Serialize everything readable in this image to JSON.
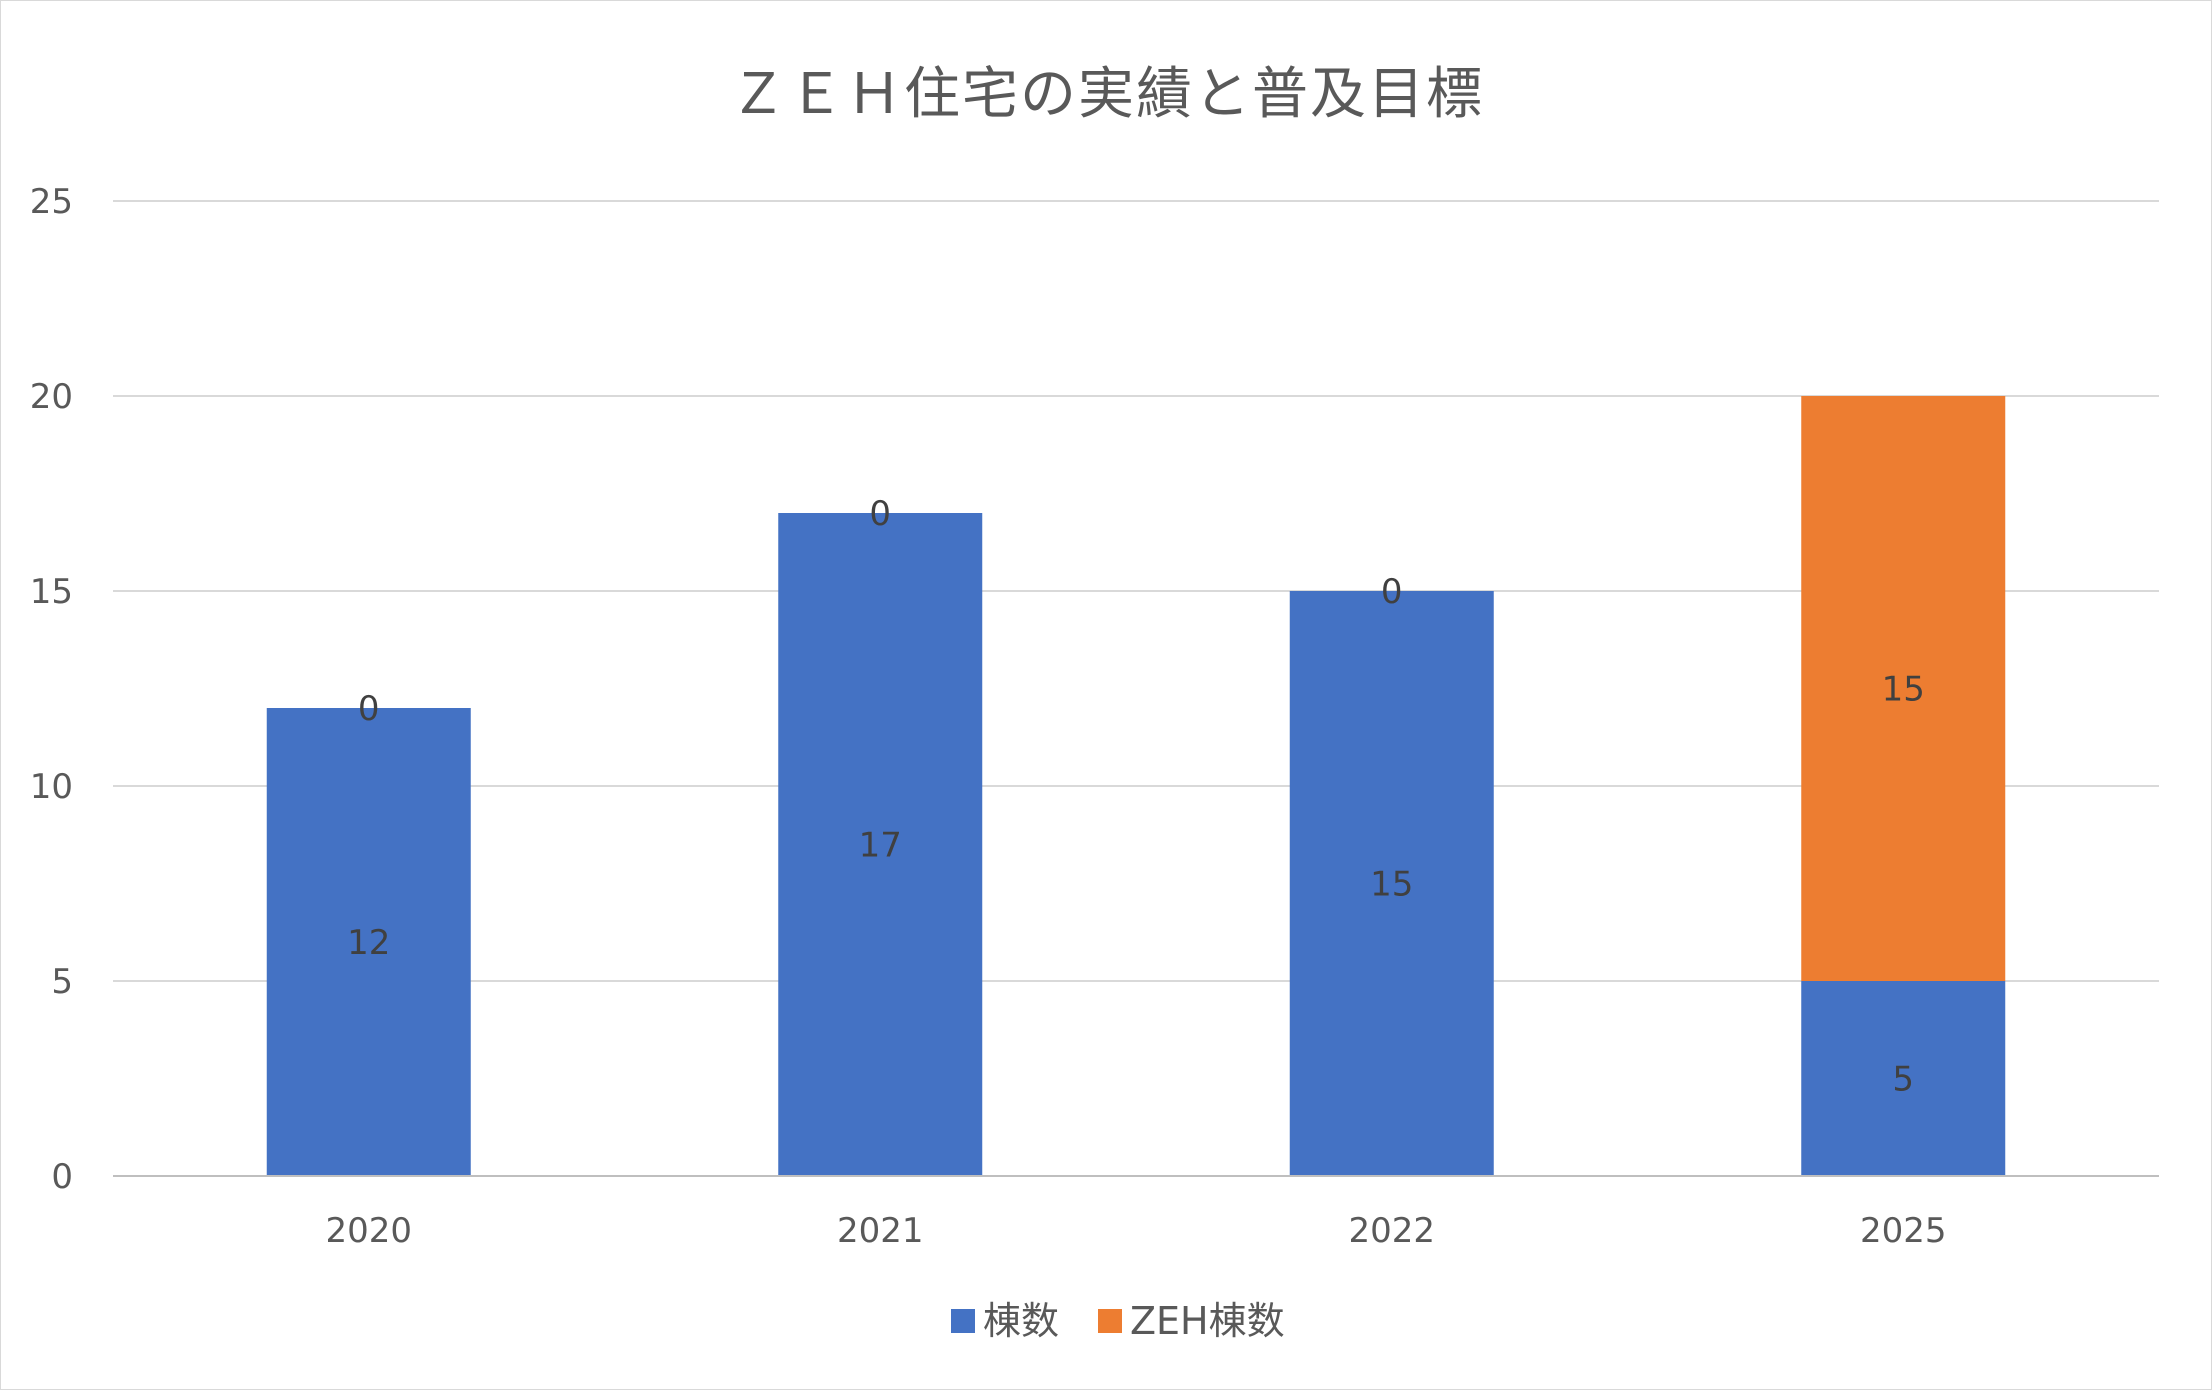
{
  "chart_data": {
    "type": "bar",
    "stacked": true,
    "title": "ＺＥＨ住宅の実績と普及目標",
    "categories": [
      "2020",
      "2021",
      "2022",
      "2025"
    ],
    "series": [
      {
        "name": "棟数",
        "color": "#4472C4",
        "values": [
          12,
          17,
          15,
          5
        ]
      },
      {
        "name": "ZEH棟数",
        "color": "#ED7D31",
        "values": [
          0,
          0,
          0,
          15
        ]
      }
    ],
    "ylim": [
      0,
      25
    ],
    "yticks": [
      0,
      5,
      10,
      15,
      20,
      25
    ],
    "grid": true,
    "legend_position": "bottom",
    "xlabel": "",
    "ylabel": ""
  }
}
